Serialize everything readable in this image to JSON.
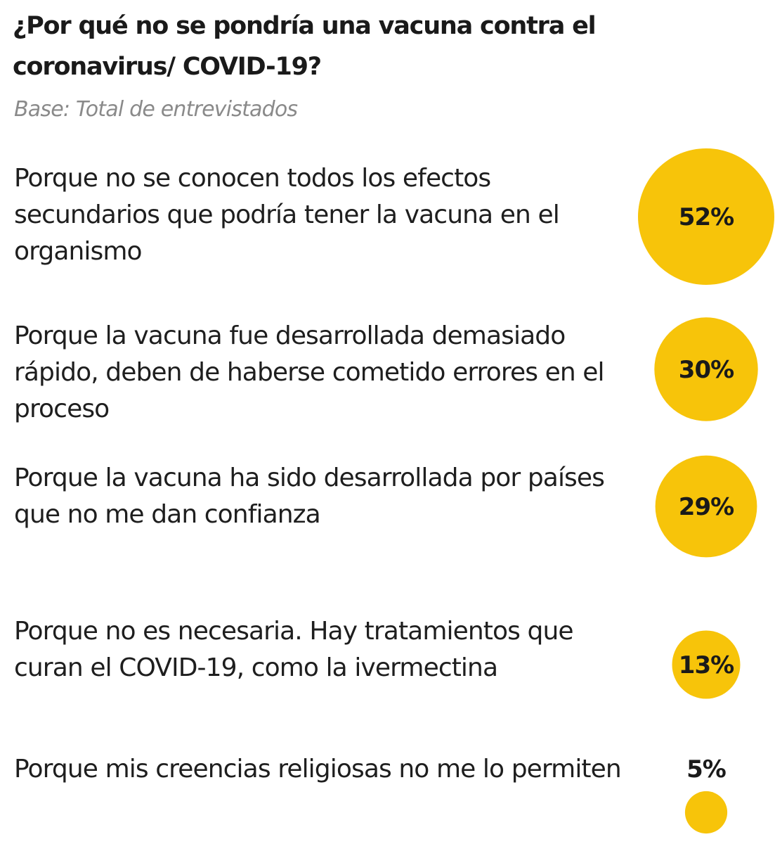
{
  "title": "¿Por qué no se pondría una vacuna contra el coronavirus/ COVID-19?",
  "subtitle": "Base: Total de entrevistados",
  "colors": {
    "bubble": "#F7C40A",
    "text": "#1a1a1a",
    "subtitle": "#8a8a8a"
  },
  "chart_data": {
    "type": "bubble",
    "title": "¿Por qué no se pondría una vacuna contra el coronavirus/ COVID-19?",
    "subtitle": "Base: Total de entrevistados",
    "unit": "%",
    "categories": [
      "Porque no se conocen todos los efectos secundarios que podría tener la vacuna en el organismo",
      "Porque la vacuna fue desarrollada demasiado rápido, deben de haberse cometido errores en el proceso",
      "Porque la vacuna ha sido desarrollada por países que no me dan confianza",
      "Porque no es necesaria. Hay tratamientos que curan el COVID-19, como la ivermectina",
      "Porque mis creencias religiosas no me lo permiten"
    ],
    "values": [
      52,
      30,
      29,
      13,
      5
    ],
    "value_labels": [
      "52%",
      "30%",
      "29%",
      "13%",
      "5%"
    ],
    "legend": "none",
    "grid": false
  }
}
